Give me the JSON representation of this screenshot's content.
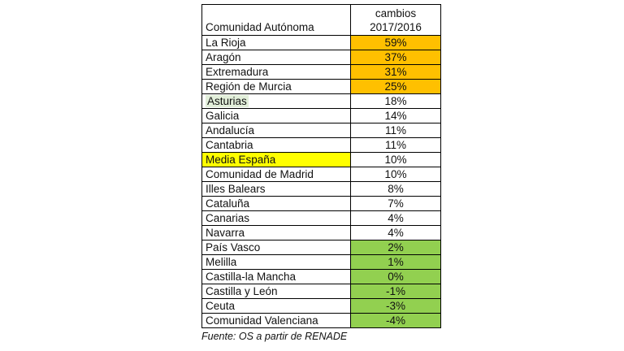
{
  "table": {
    "header": {
      "name": "Comunidad Autónoma",
      "value_line1": "cambios",
      "value_line2": "2017/2016"
    },
    "rows": [
      {
        "name": "La Rioja",
        "value": "59%",
        "highlight": "orange"
      },
      {
        "name": "Aragón",
        "value": "37%",
        "highlight": "orange"
      },
      {
        "name": "Extremadura",
        "value": "31%",
        "highlight": "orange"
      },
      {
        "name": "Región de Murcia",
        "value": "25%",
        "highlight": "orange"
      },
      {
        "name": "Asturias",
        "value": "18%",
        "highlight": "name-light-green"
      },
      {
        "name": "Galicia",
        "value": "14%",
        "highlight": "none"
      },
      {
        "name": "Andalucía",
        "value": "11%",
        "highlight": "none"
      },
      {
        "name": "Cantabria",
        "value": "11%",
        "highlight": "none"
      },
      {
        "name": "Media España",
        "value": "10%",
        "highlight": "name-yellow"
      },
      {
        "name": "Comunidad de Madrid",
        "value": "10%",
        "highlight": "none"
      },
      {
        "name": "Illes Balears",
        "value": "8%",
        "highlight": "none"
      },
      {
        "name": "Cataluña",
        "value": "7%",
        "highlight": "none"
      },
      {
        "name": "Canarias",
        "value": "4%",
        "highlight": "none"
      },
      {
        "name": "Navarra",
        "value": "4%",
        "highlight": "none"
      },
      {
        "name": "País Vasco",
        "value": "2%",
        "highlight": "green"
      },
      {
        "name": "Melilla",
        "value": "1%",
        "highlight": "green"
      },
      {
        "name": "Castilla-la Mancha",
        "value": "0%",
        "highlight": "green"
      },
      {
        "name": "Castilla y León",
        "value": "-1%",
        "highlight": "green"
      },
      {
        "name": "Ceuta",
        "value": "-3%",
        "highlight": "green"
      },
      {
        "name": "Comunidad Valenciana",
        "value": "-4%",
        "highlight": "green"
      }
    ]
  },
  "source": "Fuente: OS a partir de RENADE",
  "colors": {
    "orange": "#ffc000",
    "green": "#92d050",
    "yellow": "#ffff00",
    "light_green": "#e2efda"
  }
}
